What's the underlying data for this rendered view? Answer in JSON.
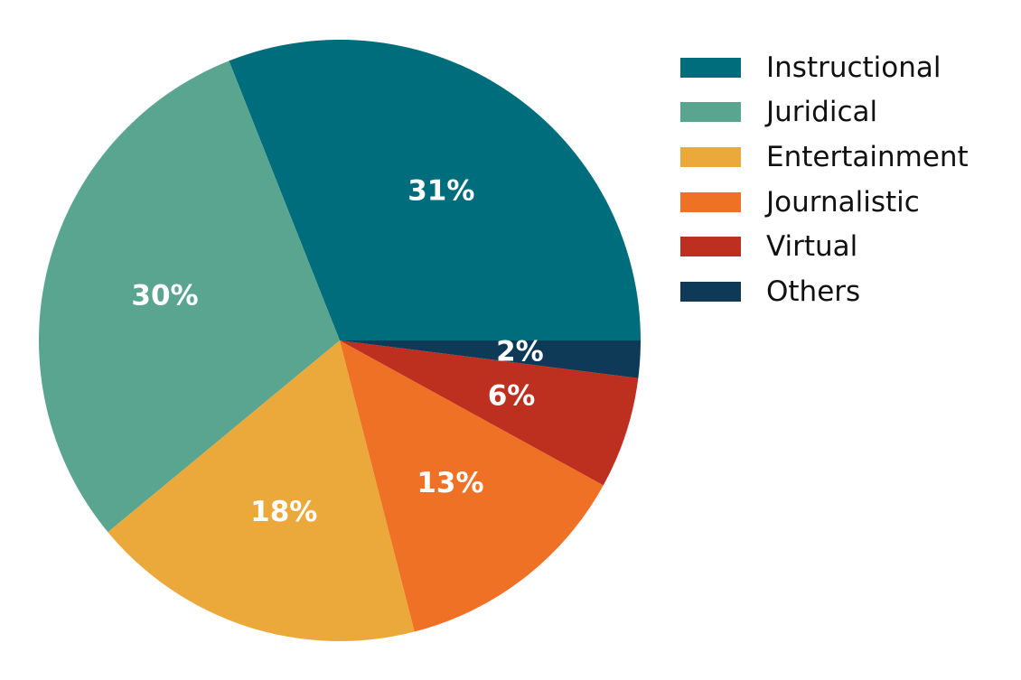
{
  "chart_data": {
    "type": "pie",
    "categories": [
      "Instructional",
      "Juridical",
      "Entertainment",
      "Journalistic",
      "Virtual",
      "Others"
    ],
    "values": [
      31,
      30,
      18,
      13,
      6,
      2
    ],
    "labels": [
      "31%",
      "30%",
      "18%",
      "13%",
      "6%",
      "2%"
    ],
    "colors": [
      "#006d7c",
      "#5aa58f",
      "#eca93b",
      "#ee7125",
      "#bd2f1f",
      "#0e3a57"
    ],
    "start_angle": 0,
    "direction": "counterclockwise",
    "legend_position": "top-right"
  }
}
